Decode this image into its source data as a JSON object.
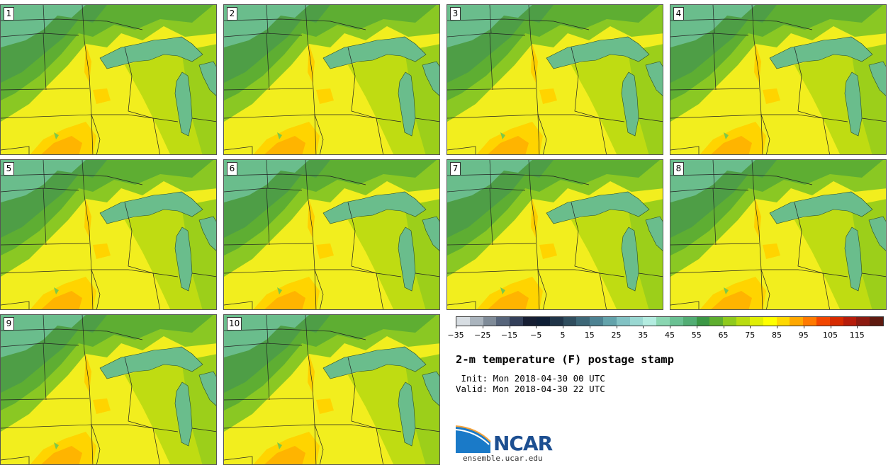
{
  "panels": [
    {
      "label": "1"
    },
    {
      "label": "2"
    },
    {
      "label": "3"
    },
    {
      "label": "4"
    },
    {
      "label": "5"
    },
    {
      "label": "6"
    },
    {
      "label": "7"
    },
    {
      "label": "8"
    },
    {
      "label": "9"
    },
    {
      "label": "10"
    }
  ],
  "colorbar": {
    "colors": [
      "#d7dde2",
      "#aab4bd",
      "#7f8b98",
      "#56647a",
      "#34405a",
      "#161e33",
      "#0f1e35",
      "#203448",
      "#2f4d5e",
      "#3d6777",
      "#4d8292",
      "#63a3ab",
      "#82c2c4",
      "#9ad8d2",
      "#b3ece0",
      "#8ad6b1",
      "#6ac193",
      "#52ad74",
      "#3b9745",
      "#5eae2f",
      "#8fca1d",
      "#b9dc10",
      "#e0ee06",
      "#ffff00",
      "#ffd800",
      "#ffa800",
      "#ff7a00",
      "#f24600",
      "#d62a00",
      "#b61c0b",
      "#8c1a10",
      "#5e1a10"
    ],
    "ticks": [
      "−35",
      "−25",
      "−15",
      "−5",
      "5",
      "15",
      "25",
      "35",
      "45",
      "55",
      "65",
      "75",
      "85",
      "95",
      "105",
      "115"
    ]
  },
  "title": "2-m temperature (F) postage stamp",
  "init_line": " Init: Mon 2018-04-30 00 UTC",
  "valid_line": "Valid: Mon 2018-04-30 22 UTC",
  "logo_text": "NCAR",
  "url": "ensemble.ucar.edu"
}
